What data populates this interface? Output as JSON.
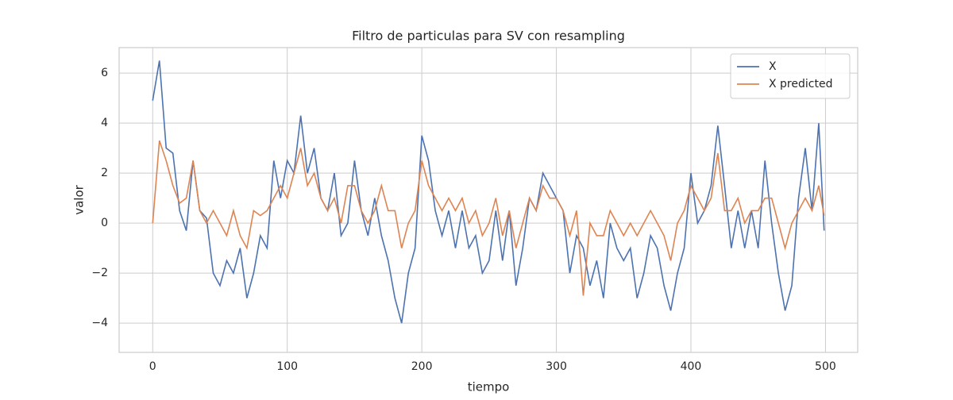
{
  "chart_data": {
    "type": "line",
    "title": "Filtro de particulas para SV con resampling",
    "x_label": "tiempo",
    "y_label": "valor",
    "x": [
      0,
      5,
      10,
      15,
      20,
      25,
      30,
      35,
      40,
      45,
      50,
      55,
      60,
      65,
      70,
      75,
      80,
      85,
      90,
      95,
      100,
      105,
      110,
      115,
      120,
      125,
      130,
      135,
      140,
      145,
      150,
      155,
      160,
      165,
      170,
      175,
      180,
      185,
      190,
      195,
      200,
      205,
      210,
      215,
      220,
      225,
      230,
      235,
      240,
      245,
      250,
      255,
      260,
      265,
      270,
      275,
      280,
      285,
      290,
      295,
      300,
      305,
      310,
      315,
      320,
      325,
      330,
      335,
      340,
      345,
      350,
      355,
      360,
      365,
      370,
      375,
      380,
      385,
      390,
      395,
      400,
      405,
      410,
      415,
      420,
      425,
      430,
      435,
      440,
      445,
      450,
      455,
      460,
      465,
      470,
      475,
      480,
      485,
      490,
      495,
      499
    ],
    "series": [
      {
        "name": "X",
        "color": "#4c72b0",
        "values": [
          4.9,
          6.5,
          3.0,
          2.8,
          0.5,
          -0.3,
          2.5,
          0.5,
          0.2,
          -2.0,
          -2.5,
          -1.5,
          -2.0,
          -1.0,
          -3.0,
          -2.0,
          -0.5,
          -1.0,
          2.5,
          1.0,
          2.5,
          2.0,
          4.3,
          2.0,
          3.0,
          1.0,
          0.5,
          2.0,
          -0.5,
          0.0,
          2.5,
          0.5,
          -0.5,
          1.0,
          -0.5,
          -1.5,
          -3.0,
          -4.0,
          -2.0,
          -1.0,
          3.5,
          2.5,
          0.5,
          -0.5,
          0.5,
          -1.0,
          0.5,
          -1.0,
          -0.5,
          -2.0,
          -1.5,
          0.5,
          -1.5,
          0.5,
          -2.5,
          -1.0,
          1.0,
          0.5,
          2.0,
          1.5,
          1.0,
          0.5,
          -2.0,
          -0.5,
          -1.0,
          -2.5,
          -1.5,
          -3.0,
          0.0,
          -1.0,
          -1.5,
          -1.0,
          -3.0,
          -2.0,
          -0.5,
          -1.0,
          -2.5,
          -3.5,
          -2.0,
          -1.0,
          2.0,
          0.0,
          0.5,
          1.5,
          3.9,
          1.5,
          -1.0,
          0.5,
          -1.0,
          0.5,
          -1.0,
          2.5,
          0.0,
          -2.0,
          -3.5,
          -2.5,
          1.0,
          3.0,
          0.5,
          4.0,
          -0.3
        ]
      },
      {
        "name": "X predicted",
        "color": "#dd8452",
        "values": [
          0.0,
          3.3,
          2.5,
          1.5,
          0.8,
          1.0,
          2.5,
          0.5,
          0.0,
          0.5,
          0.0,
          -0.5,
          0.5,
          -0.5,
          -1.0,
          0.5,
          0.3,
          0.5,
          1.0,
          1.5,
          1.0,
          2.0,
          3.0,
          1.5,
          2.0,
          1.0,
          0.5,
          1.0,
          0.0,
          1.5,
          1.5,
          0.5,
          0.0,
          0.5,
          1.5,
          0.5,
          0.5,
          -1.0,
          0.0,
          0.5,
          2.5,
          1.5,
          1.0,
          0.5,
          1.0,
          0.5,
          1.0,
          0.0,
          0.5,
          -0.5,
          0.0,
          1.0,
          -0.5,
          0.5,
          -1.0,
          0.0,
          1.0,
          0.5,
          1.5,
          1.0,
          1.0,
          0.5,
          -0.5,
          0.5,
          -2.9,
          0.0,
          -0.5,
          -0.5,
          0.5,
          0.0,
          -0.5,
          0.0,
          -0.5,
          0.0,
          0.5,
          0.0,
          -0.5,
          -1.5,
          0.0,
          0.5,
          1.5,
          1.0,
          0.5,
          1.0,
          2.8,
          0.5,
          0.5,
          1.0,
          0.0,
          0.5,
          0.5,
          1.0,
          1.0,
          0.0,
          -1.0,
          0.0,
          0.5,
          1.0,
          0.5,
          1.5,
          0.3
        ]
      }
    ],
    "xlim": [
      -24.95,
      523.95
    ],
    "ylim": [
      -5.17,
      7.02
    ],
    "xticks": [
      0,
      100,
      200,
      300,
      400,
      500
    ],
    "yticks": [
      {
        "value": -4,
        "label": "−4"
      },
      {
        "value": -2,
        "label": "−2"
      },
      0,
      2,
      4,
      6
    ],
    "grid": true,
    "legend": "upper right"
  }
}
